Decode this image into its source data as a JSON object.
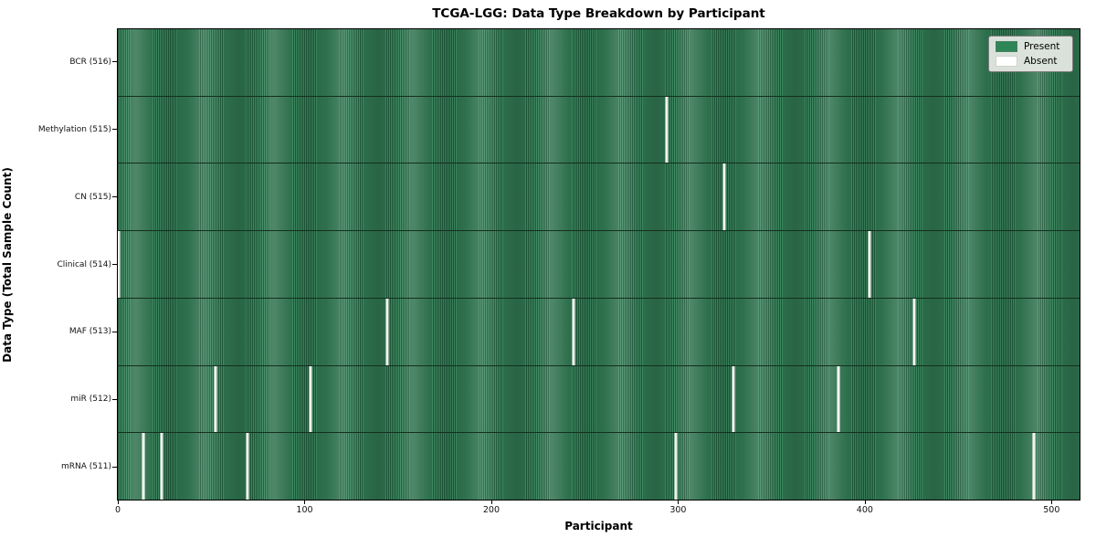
{
  "figure": {
    "title": "TCGA-LGG: Data Type Breakdown by Participant",
    "xlabel": "Participant",
    "ylabel": "Data Type (Total Sample Count)"
  },
  "legend": {
    "items": [
      {
        "label": "Present",
        "color": "#2e8656"
      },
      {
        "label": "Absent",
        "color": "#ffffff"
      }
    ]
  },
  "chart_data": {
    "type": "heatmap",
    "title": "TCGA-LGG: Data Type Breakdown by Participant",
    "xlabel": "Participant",
    "ylabel": "Data Type (Total Sample Count)",
    "n_participants": 516,
    "xlim": [
      -0.5,
      515.5
    ],
    "x_ticks": [
      0,
      100,
      200,
      300,
      400,
      500
    ],
    "grid": false,
    "legend_position": "upper right",
    "colors": {
      "present": "#2e8656",
      "absent": "#f3f3ef"
    },
    "rows": [
      {
        "data_type": "BCR",
        "label": "BCR (516)",
        "present_count": 516,
        "absent_participants": []
      },
      {
        "data_type": "Methylation",
        "label": "Methylation (515)",
        "present_count": 515,
        "absent_participants": [
          294
        ]
      },
      {
        "data_type": "CN",
        "label": "CN (515)",
        "present_count": 515,
        "absent_participants": [
          325
        ]
      },
      {
        "data_type": "Clinical",
        "label": "Clinical (514)",
        "present_count": 514,
        "absent_participants": [
          0,
          403
        ]
      },
      {
        "data_type": "MAF",
        "label": "MAF (513)",
        "present_count": 513,
        "absent_participants": [
          144,
          244,
          427
        ]
      },
      {
        "data_type": "miR",
        "label": "miR (512)",
        "present_count": 512,
        "absent_participants": [
          52,
          103,
          330,
          386
        ]
      },
      {
        "data_type": "mRNA",
        "label": "mRNA (511)",
        "present_count": 511,
        "absent_participants": [
          13,
          23,
          69,
          299,
          491
        ]
      }
    ]
  }
}
